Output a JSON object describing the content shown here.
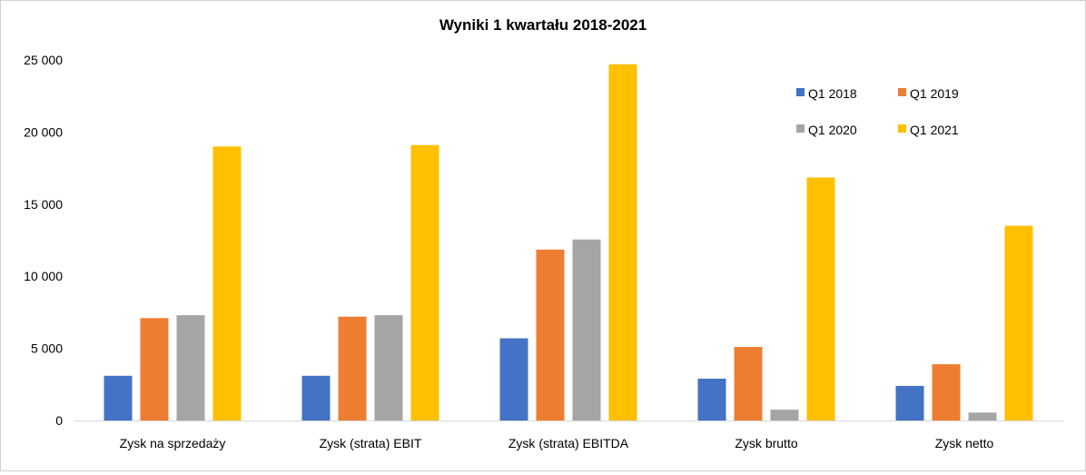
{
  "chart_data": {
    "type": "bar",
    "title": "Wyniki 1 kwartału 2018-2021",
    "xlabel": "",
    "ylabel": "",
    "ylim": [
      0,
      25000
    ],
    "yticks": [
      0,
      5000,
      10000,
      15000,
      20000,
      25000
    ],
    "ytick_labels": [
      "0",
      "5 000",
      "10 000",
      "15 000",
      "20 000",
      "25 000"
    ],
    "grid": false,
    "legend_position": "top-right",
    "categories": [
      "Zysk na sprzedaży",
      "Zysk (strata) EBIT",
      "Zysk (strata) EBITDA",
      "Zysk brutto",
      "Zysk netto"
    ],
    "series": [
      {
        "name": "Q1 2018",
        "color": "#4472c4",
        "values": [
          3100,
          3100,
          5700,
          2900,
          2400
        ]
      },
      {
        "name": "Q1 2019",
        "color": "#ed7d31",
        "values": [
          7100,
          7200,
          11850,
          5100,
          3900
        ]
      },
      {
        "name": "Q1 2020",
        "color": "#a5a5a5",
        "values": [
          7300,
          7300,
          12550,
          750,
          550
        ]
      },
      {
        "name": "Q1 2021",
        "color": "#ffc000",
        "values": [
          19000,
          19100,
          24700,
          16850,
          13500
        ]
      }
    ]
  }
}
